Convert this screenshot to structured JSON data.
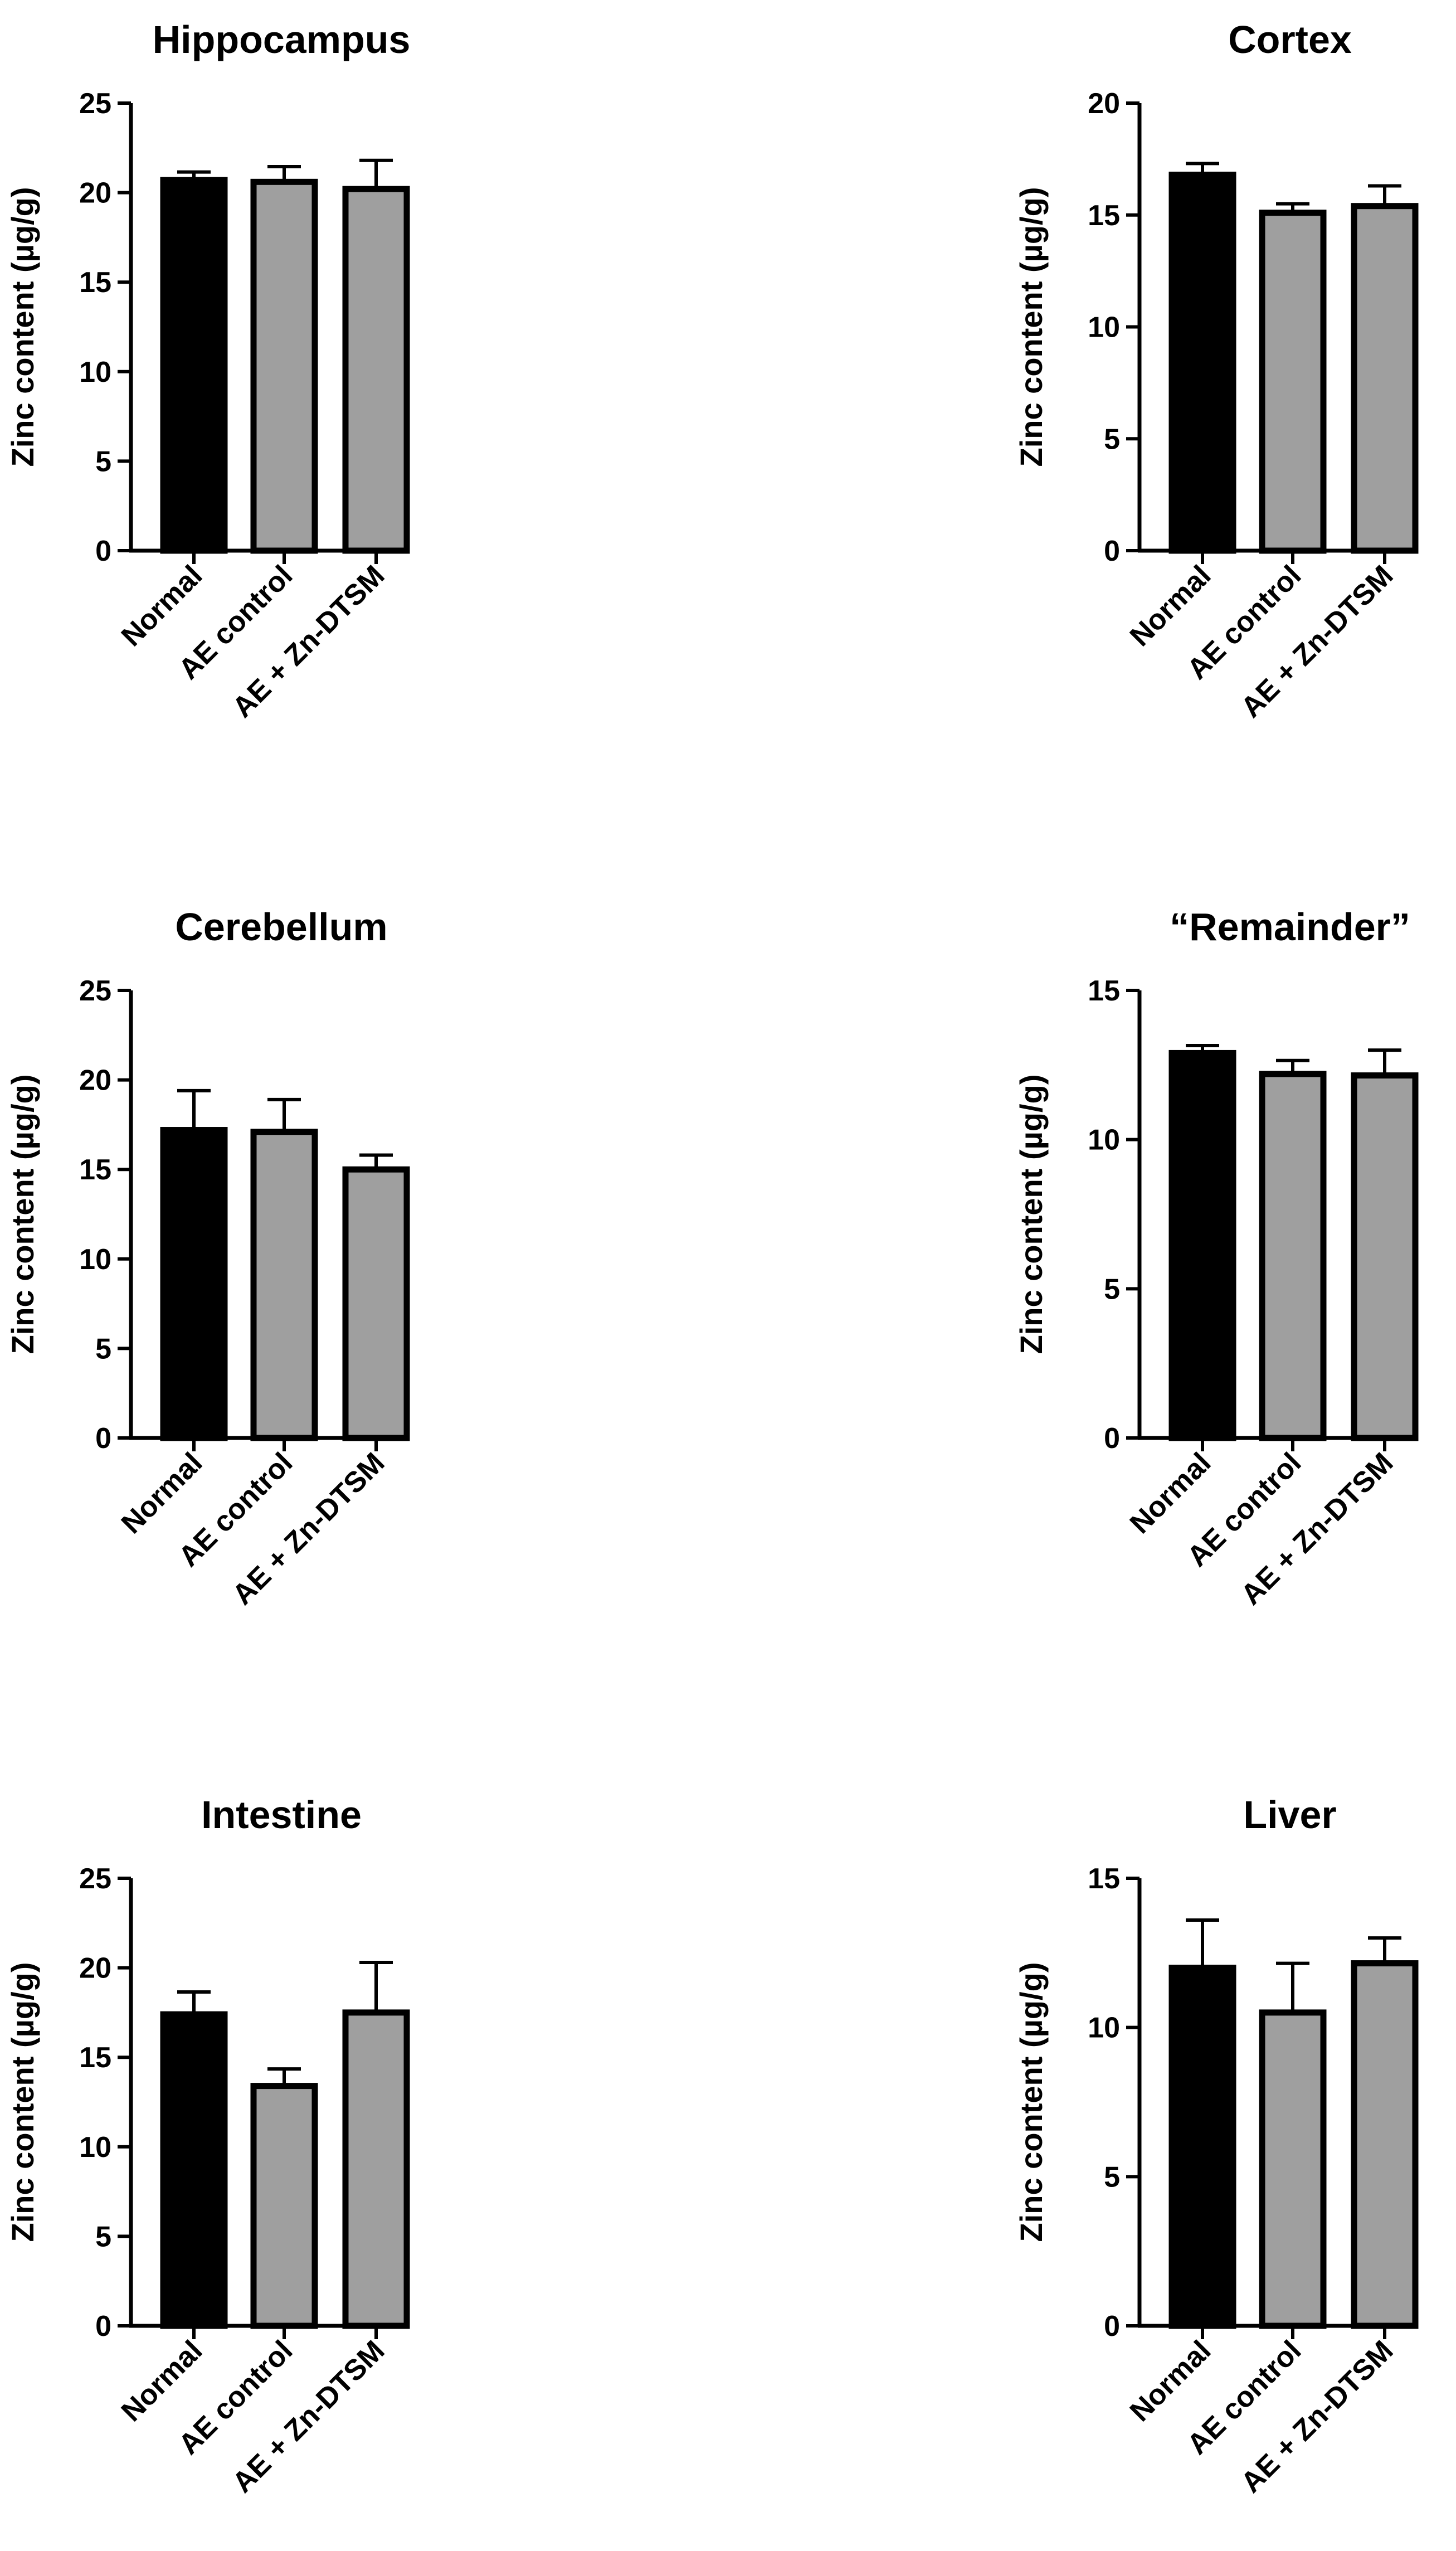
{
  "chart_data": [
    {
      "type": "bar",
      "title": "Hippocampus",
      "ylabel": "Zinc content (µg/g)",
      "categories": [
        "Normal",
        "AE control",
        "AE + Zn-DTSM"
      ],
      "values": [
        20.7,
        20.6,
        20.2
      ],
      "errors": [
        0.45,
        0.85,
        1.6
      ],
      "ylim": [
        0,
        25
      ],
      "yticks": [
        "0",
        "5",
        "10",
        "15",
        "20",
        "25"
      ],
      "colors": [
        "#000000",
        "#9f9f9f",
        "#9f9f9f"
      ]
    },
    {
      "type": "bar",
      "title": "Cortex",
      "ylabel": "Zinc content (µg/g)",
      "categories": [
        "Normal",
        "AE control",
        "AE + Zn-DTSM"
      ],
      "values": [
        16.8,
        15.1,
        15.4
      ],
      "errors": [
        0.5,
        0.4,
        0.9
      ],
      "ylim": [
        0,
        20
      ],
      "yticks": [
        "0",
        "5",
        "10",
        "15",
        "20"
      ],
      "colors": [
        "#000000",
        "#9f9f9f",
        "#9f9f9f"
      ]
    },
    {
      "type": "bar",
      "title": "Cerebellum",
      "ylabel": "Zinc content (µg/g)",
      "categories": [
        "Normal",
        "AE control",
        "AE + Zn-DTSM"
      ],
      "values": [
        17.2,
        17.1,
        15.0
      ],
      "errors": [
        2.2,
        1.8,
        0.8
      ],
      "ylim": [
        0,
        25
      ],
      "yticks": [
        "0",
        "5",
        "10",
        "15",
        "20",
        "25"
      ],
      "colors": [
        "#000000",
        "#9f9f9f",
        "#9f9f9f"
      ]
    },
    {
      "type": "bar",
      "title": "“Remainder”",
      "ylabel": "Zinc content (µg/g)",
      "categories": [
        "Normal",
        "AE control",
        "AE + Zn-DTSM"
      ],
      "values": [
        12.9,
        12.2,
        12.15
      ],
      "errors": [
        0.25,
        0.45,
        0.85
      ],
      "ylim": [
        0,
        15
      ],
      "yticks": [
        "0",
        "5",
        "10",
        "15"
      ],
      "colors": [
        "#000000",
        "#9f9f9f",
        "#9f9f9f"
      ]
    },
    {
      "type": "bar",
      "title": "Intestine",
      "ylabel": "Zinc content (µg/g)",
      "categories": [
        "Normal",
        "AE control",
        "AE + Zn-DTSM"
      ],
      "values": [
        17.4,
        13.4,
        17.5
      ],
      "errors": [
        1.25,
        0.95,
        2.8
      ],
      "ylim": [
        0,
        25
      ],
      "yticks": [
        "0",
        "5",
        "10",
        "15",
        "20",
        "25"
      ],
      "colors": [
        "#000000",
        "#9f9f9f",
        "#9f9f9f"
      ]
    },
    {
      "type": "bar",
      "title": "Liver",
      "ylabel": "Zinc content (µg/g)",
      "categories": [
        "Normal",
        "AE control",
        "AE + Zn-DTSM"
      ],
      "values": [
        12.0,
        10.5,
        12.15
      ],
      "errors": [
        1.6,
        1.65,
        0.85
      ],
      "ylim": [
        0,
        15
      ],
      "yticks": [
        "0",
        "5",
        "10",
        "15"
      ],
      "colors": [
        "#000000",
        "#9f9f9f",
        "#9f9f9f"
      ]
    }
  ]
}
